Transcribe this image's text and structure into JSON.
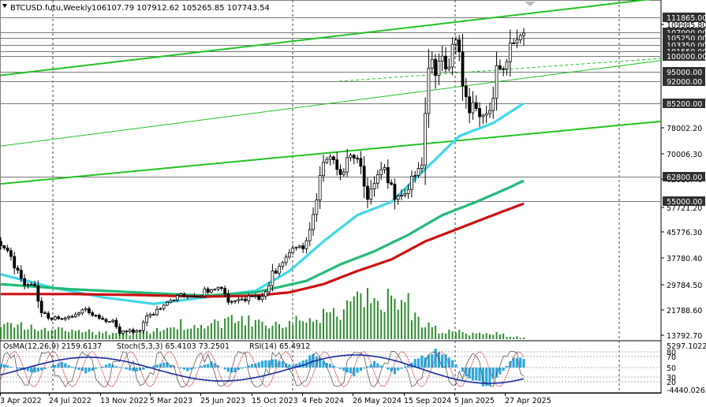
{
  "header": {
    "symbol": "BTCUSD.futu,Weekly",
    "ohlc": "106107.79 107912.62 105265.85 107743.54"
  },
  "indicators": {
    "osma": "OsMA(12,26,9) 2159.6137",
    "stoch": "Stoch(5,3,3) 65.4103 73.2501",
    "rsi": "RSI(14) 65.4912"
  },
  "colors": {
    "candle": "#000000",
    "channel": "#22c322",
    "ema_fast": "#3fd8e8",
    "ema_mid": "#22bb77",
    "ema_slow": "#cc1111",
    "volume": "#2e8b2e",
    "osma": "#29a8e0",
    "stoch_main": "#1a2aa0",
    "stoch_signal": "#cc2222",
    "level_box": "#2f2f2f"
  },
  "chart_data": {
    "type": "candlestick",
    "price_axis_ticks": [
      "109985.80",
      "78002.20",
      "70006.30",
      "62010.40",
      "57721.20",
      "45776.30",
      "37780.40",
      "29784.50",
      "21788.60",
      "13792.70"
    ],
    "level_labels": [
      "111865.00",
      "107000.00",
      "105250.00",
      "103350.00",
      "101550.00",
      "100000.00",
      "95000.00",
      "92000.00",
      "85200.00",
      "62800.00",
      "55000.00"
    ],
    "x_ticks": [
      "3 Apr 2022",
      "24 Jul 2022",
      "13 Nov 2022",
      "5 Mar 2023",
      "25 Jun 2023",
      "15 Oct 2023",
      "4 Feb 2024",
      "26 May 2024",
      "15 Sep 2024",
      "5 Jan 2025",
      "27 Apr 2025"
    ],
    "osc_axis_labels": [
      "5297.1022",
      "80",
      "70",
      "50",
      "30",
      "20",
      "-4440.0263"
    ],
    "ylim": [
      13792.7,
      115000
    ],
    "close_path": [
      [
        0,
        44000
      ],
      [
        3,
        39000
      ],
      [
        7,
        31000
      ],
      [
        10,
        30000
      ],
      [
        12,
        22000
      ],
      [
        15,
        20500
      ],
      [
        20,
        21000
      ],
      [
        25,
        23000
      ],
      [
        30,
        20000
      ],
      [
        33,
        19500
      ],
      [
        35,
        16500
      ],
      [
        38,
        16800
      ],
      [
        41,
        16900
      ],
      [
        43,
        21000
      ],
      [
        46,
        23000
      ],
      [
        48,
        24000
      ],
      [
        52,
        28000
      ],
      [
        55,
        27800
      ],
      [
        58,
        27500
      ],
      [
        62,
        30000
      ],
      [
        65,
        30400
      ],
      [
        67,
        26200
      ],
      [
        70,
        26000
      ],
      [
        73,
        27000
      ],
      [
        76,
        26500
      ],
      [
        78,
        28000
      ],
      [
        80,
        34000
      ],
      [
        83,
        37000
      ],
      [
        86,
        43000
      ],
      [
        89,
        42000
      ],
      [
        92,
        52000
      ],
      [
        95,
        68000
      ],
      [
        97,
        70500
      ],
      [
        100,
        65000
      ],
      [
        103,
        70000
      ],
      [
        106,
        68000
      ],
      [
        108,
        57000
      ],
      [
        111,
        63000
      ],
      [
        113,
        65000
      ],
      [
        116,
        57000
      ],
      [
        118,
        58000
      ],
      [
        120,
        61000
      ],
      [
        122,
        63000
      ],
      [
        124,
        68000
      ],
      [
        126,
        96000
      ],
      [
        128,
        97000
      ],
      [
        130,
        100000
      ],
      [
        132,
        98000
      ],
      [
        134,
        105000
      ],
      [
        136,
        94000
      ],
      [
        138,
        85000
      ],
      [
        140,
        84000
      ],
      [
        142,
        80000
      ],
      [
        144,
        84000
      ],
      [
        146,
        95000
      ],
      [
        148,
        94000
      ],
      [
        150,
        104000
      ],
      [
        152,
        108000
      ],
      [
        153,
        105000
      ],
      [
        154,
        107743
      ]
    ],
    "volume_path": [
      [
        0,
        0.25
      ],
      [
        10,
        0.2
      ],
      [
        20,
        0.15
      ],
      [
        30,
        0.12
      ],
      [
        40,
        0.1
      ],
      [
        50,
        0.25
      ],
      [
        60,
        0.3
      ],
      [
        70,
        0.32
      ],
      [
        80,
        0.28
      ],
      [
        90,
        0.35
      ],
      [
        100,
        0.55
      ],
      [
        110,
        0.7
      ],
      [
        115,
        0.65
      ],
      [
        120,
        0.6
      ],
      [
        125,
        0.25
      ],
      [
        130,
        0.15
      ],
      [
        135,
        0.12
      ],
      [
        140,
        0.08
      ],
      [
        145,
        0.12
      ],
      [
        150,
        0.05
      ],
      [
        154,
        0.03
      ]
    ],
    "series": [
      {
        "values": [
          [
            0,
            34000
          ],
          [
            15,
            30000
          ],
          [
            30,
            27000
          ],
          [
            45,
            25000
          ],
          [
            60,
            27000
          ],
          [
            75,
            29000
          ],
          [
            85,
            35000
          ],
          [
            95,
            44000
          ],
          [
            105,
            52000
          ],
          [
            115,
            56000
          ],
          [
            125,
            66000
          ],
          [
            135,
            76000
          ],
          [
            145,
            80000
          ],
          [
            154,
            86000
          ]
        ]
      },
      {
        "values": [
          [
            0,
            31000
          ],
          [
            20,
            29500
          ],
          [
            40,
            28500
          ],
          [
            60,
            27500
          ],
          [
            75,
            28500
          ],
          [
            90,
            32000
          ],
          [
            100,
            37000
          ],
          [
            110,
            41000
          ],
          [
            120,
            46000
          ],
          [
            130,
            52000
          ],
          [
            140,
            56000
          ],
          [
            150,
            60500
          ],
          [
            154,
            62500
          ]
        ]
      },
      {
        "values": [
          [
            0,
            28000
          ],
          [
            20,
            28000
          ],
          [
            40,
            27700
          ],
          [
            60,
            27200
          ],
          [
            75,
            27500
          ],
          [
            85,
            28500
          ],
          [
            95,
            31000
          ],
          [
            105,
            35000
          ],
          [
            115,
            38500
          ],
          [
            125,
            44000
          ],
          [
            135,
            48000
          ],
          [
            145,
            52000
          ],
          [
            154,
            55500
          ]
        ]
      }
    ],
    "channels": [
      {
        "from": [
          0,
          94500
        ],
        "to": [
          154,
          118000
        ]
      },
      {
        "from": [
          0,
          73000
        ],
        "to": [
          154,
          99000
        ]
      },
      {
        "from": [
          0,
          61500
        ],
        "to": [
          154,
          80500
        ]
      }
    ],
    "grid": false
  }
}
